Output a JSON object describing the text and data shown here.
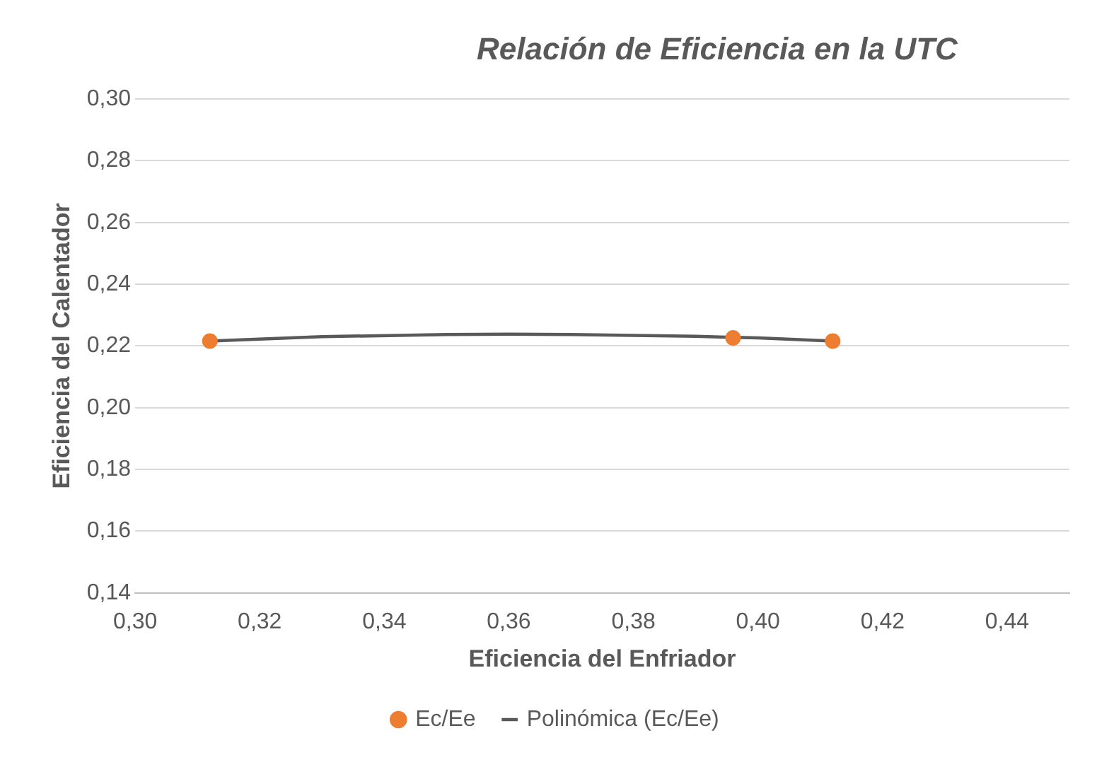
{
  "chart_data": {
    "type": "scatter",
    "title": "Relación de Eficiencia en la UTC",
    "xlabel": "Eficiencia del Enfriador",
    "ylabel": "Eficiencia del Calentador",
    "xlim": [
      0.3,
      0.45
    ],
    "xticks": [
      {
        "value": 0.3,
        "label": "0,30"
      },
      {
        "value": 0.32,
        "label": "0,32"
      },
      {
        "value": 0.34,
        "label": "0,34"
      },
      {
        "value": 0.36,
        "label": "0,36"
      },
      {
        "value": 0.38,
        "label": "0,38"
      },
      {
        "value": 0.4,
        "label": "0,40"
      },
      {
        "value": 0.42,
        "label": "0,42"
      },
      {
        "value": 0.44,
        "label": "0,44"
      }
    ],
    "ylim": [
      0.14,
      0.3
    ],
    "yticks": [
      {
        "value": 0.14,
        "label": "0,14"
      },
      {
        "value": 0.16,
        "label": "0,16"
      },
      {
        "value": 0.18,
        "label": "0,18"
      },
      {
        "value": 0.2,
        "label": "0,20"
      },
      {
        "value": 0.22,
        "label": "0,22"
      },
      {
        "value": 0.24,
        "label": "0,24"
      },
      {
        "value": 0.26,
        "label": "0,26"
      },
      {
        "value": 0.28,
        "label": "0,28"
      },
      {
        "value": 0.3,
        "label": "0,30"
      }
    ],
    "grid": "y",
    "legend": "bottom",
    "series": [
      {
        "name": "Ec/Ee",
        "marker": "circle",
        "color": "#ed7d31",
        "x": [
          0.312,
          0.396,
          0.412
        ],
        "values": [
          0.2216,
          0.2226,
          0.2216
        ]
      },
      {
        "name": "Polinómica (Ec/Ee)",
        "type": "line",
        "marker": "none",
        "color": "#595959",
        "x": [
          0.312,
          0.33,
          0.35,
          0.36,
          0.37,
          0.39,
          0.4,
          0.412
        ],
        "values": [
          0.2216,
          0.223,
          0.2237,
          0.2238,
          0.2237,
          0.2231,
          0.2226,
          0.2216
        ]
      }
    ]
  }
}
